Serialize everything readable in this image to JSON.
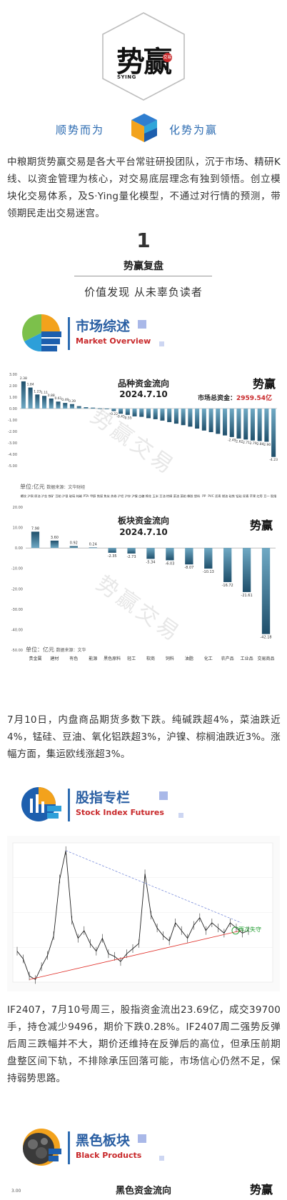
{
  "brand": {
    "logo_text": "势赢",
    "seal_text": "交易",
    "syng": "SYING",
    "slogan_left": "顺势而为",
    "slogan_right": "化势为赢"
  },
  "intro": "中粮期货势赢交易是各大平台常驻研投团队，沉于市场、精研K线、以资金管理为核心，对交易底层理念有独到领悟。创立模块化交易体系，及S·Ying量化模型，不通过对行情的预测，带领期民走出交易迷宫。",
  "section": {
    "number": "1",
    "title": "势赢复盘",
    "subtitle": "价值发现 从未辜负读者"
  },
  "market_overview": {
    "title_cn": "市场综述",
    "title_en": "Market Overview",
    "para": "7月10日，内盘商品期货多数下跌。纯碱跌超4%，菜油跌近4%，锰硅、豆油、氧化铝跌超3%，沪镍、棕榈油跌近3%。涨幅方面，集运欧线涨超3%。"
  },
  "stock_index": {
    "title_cn": "股指专栏",
    "title_en": "Stock Index Futures",
    "para": "IF2407，7月10号周三，股指资金流出23.69亿，成交39700手，持仓减少9496，期价下跌0.28%。IF2407周二强势反弹后周三跌幅并不大，期价还维持在反弹后的高位，但承压前期盘整区间下轨，不排除承压回落可能，市场信心仍然不足，保持弱势思路。",
    "annotation": "再次失守"
  },
  "black": {
    "title_cn": "黑色板块",
    "title_en": "Black Products",
    "chart_title": "黑色资金流向"
  },
  "watermark": "势赢交易",
  "chart_data": [
    {
      "type": "bar",
      "title": "品种资金流向",
      "date": "2024.7.10",
      "total_label": "市场总资金：",
      "total_value": "2959.54亿",
      "unit_label": "单位:亿元",
      "unit_source": "数据来源：文华财经",
      "ylim": [
        -5,
        3
      ],
      "yticks": [
        "3.00",
        "2.00",
        "1.00",
        "0.00",
        "-1.00",
        "-2.00",
        "-3.00",
        "-4.00",
        "-5.00"
      ],
      "values": [
        2.38,
        1.84,
        1.23,
        1.11,
        0.88,
        0.61,
        0.49,
        0.39,
        0.21,
        0.12,
        0.08,
        0.02,
        -0.01,
        -0.22,
        -0.45,
        -0.55,
        -0.68,
        -0.72,
        -0.84,
        -0.93,
        -1.05,
        -1.18,
        -1.32,
        -1.45,
        -1.58,
        -1.75,
        -1.92,
        -2.06,
        -2.21,
        -2.35,
        -2.49,
        -2.62,
        -2.71,
        -2.79,
        -2.84,
        -2.9,
        -4.23
      ],
      "data_labels": [
        "2.38",
        "1.84",
        "1.23",
        "1.11",
        "0.88",
        "0.61",
        "0.49",
        "0.39",
        "",
        "",
        "",
        "",
        "",
        "-0.22",
        "-0.45",
        "-0.55",
        "",
        "",
        "",
        "",
        "",
        "",
        "",
        "",
        "",
        "",
        "",
        "",
        "",
        "",
        "-2.49",
        "-2.62",
        "-2.71",
        "-2.79",
        "-2.84",
        "-2.90",
        "-4.23"
      ],
      "categories": [
        "螺纹",
        "沪铜",
        "原油",
        "沪金",
        "铁矿",
        "豆粕",
        "沪银",
        "玻璃",
        "纯碱",
        "PTA",
        "甲醇",
        "焦煤",
        "焦炭",
        "热卷",
        "沪铝",
        "沪锌",
        "沪镍",
        "白糖",
        "棉花",
        "玉米",
        "豆油",
        "棕榈",
        "菜油",
        "菜粕",
        "橡胶",
        "塑料",
        "PP",
        "PVC",
        "沥青",
        "燃油",
        "硅铁",
        "锰硅",
        "尿素",
        "苹果",
        "红枣",
        "豆一",
        "股指"
      ]
    },
    {
      "type": "bar",
      "title": "板块资金流向",
      "date": "2024.7.10",
      "unit_label": "单位：亿元",
      "unit_source": "数据来源：文华",
      "ylim": [
        -50,
        20
      ],
      "yticks": [
        "20.00",
        "10.00",
        "0.00",
        "-10.00",
        "-20.00",
        "-30.00",
        "-40.00",
        "-50.00"
      ],
      "values": [
        7.98,
        3.6,
        0.92,
        0.24,
        -2.35,
        -2.73,
        -5.34,
        -6.03,
        -8.07,
        -10.13,
        -16.72,
        -21.61,
        -42.18
      ],
      "data_labels": [
        "7.98",
        "3.60",
        "0.92",
        "0.24",
        "-2.35",
        "-2.73",
        "-5.34",
        "-6.03",
        "-8.07",
        "-10.13",
        "-16.72",
        "-21.61",
        "-42.18"
      ],
      "categories": [
        "贵金属",
        "建材",
        "有色",
        "能源",
        "黑色原料",
        "轻工",
        "软商",
        "饲料",
        "油脂",
        "化工",
        "农产品",
        "工业品",
        "交易商品"
      ]
    },
    {
      "type": "line",
      "title": "",
      "series": [
        {
          "name": "",
          "values": [
            3900,
            3750,
            3420,
            3350,
            3600,
            3820,
            4200,
            5300,
            5850,
            4500,
            4150,
            4300,
            4050,
            3900,
            4150,
            3850,
            3800,
            3700,
            3850,
            3950,
            4050,
            5400,
            4600,
            4350,
            4200,
            4100,
            4450,
            4300,
            4150,
            4400,
            4550,
            4300,
            4450,
            4350,
            4250,
            4450,
            4350,
            4250,
            4300
          ]
        }
      ],
      "legend": "none"
    }
  ]
}
